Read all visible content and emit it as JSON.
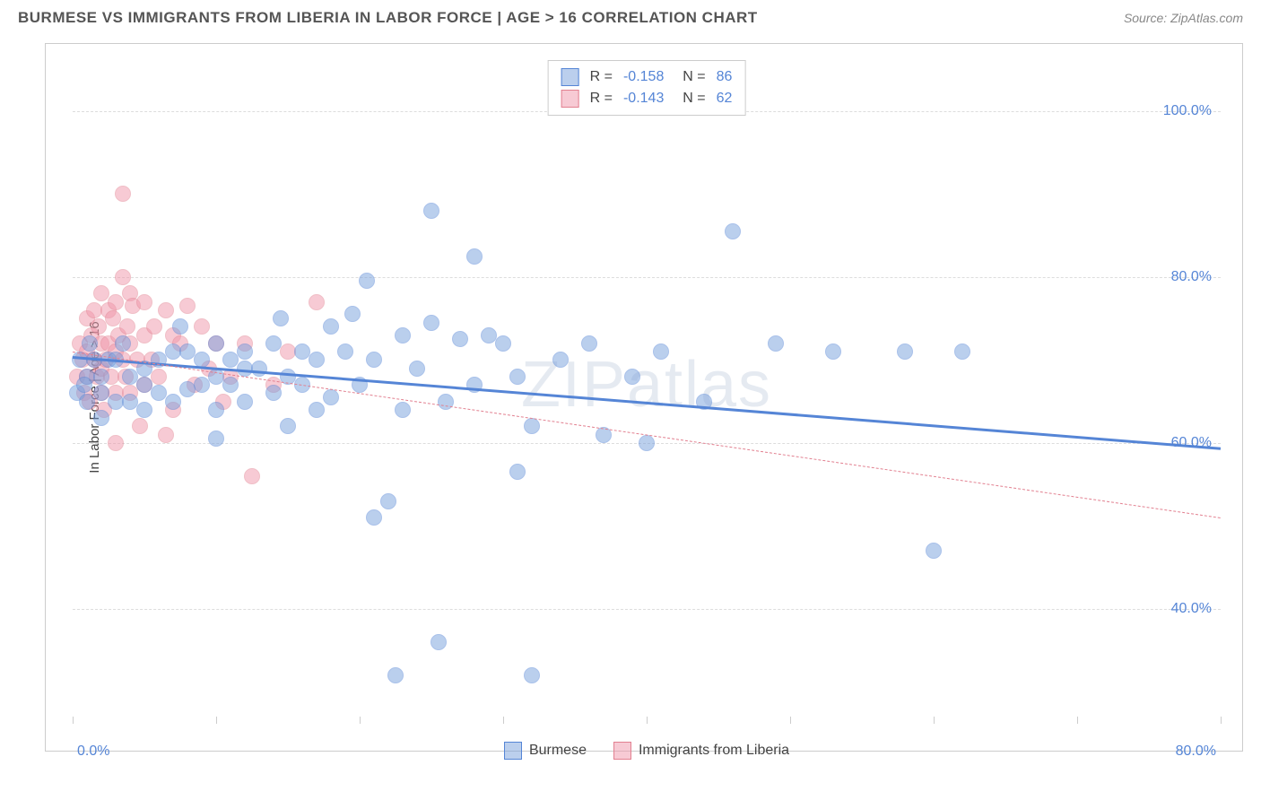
{
  "header": {
    "title": "BURMESE VS IMMIGRANTS FROM LIBERIA IN LABOR FORCE | AGE > 16 CORRELATION CHART",
    "source": "Source: ZipAtlas.com"
  },
  "watermark": "ZIPatlas",
  "chart": {
    "type": "scatter",
    "y_axis_label": "In Labor Force | Age > 16",
    "xlim": [
      0,
      80
    ],
    "ylim": [
      27,
      107
    ],
    "x_ticks": [
      0,
      10,
      20,
      30,
      40,
      50,
      60,
      70,
      80
    ],
    "x_tick_labels_shown": {
      "start": "0.0%",
      "end": "80.0%"
    },
    "y_gridlines": [
      40,
      60,
      80,
      100
    ],
    "y_tick_labels": [
      "40.0%",
      "60.0%",
      "80.0%",
      "100.0%"
    ],
    "background_color": "#ffffff",
    "grid_color": "#dddddd",
    "border_color": "#cccccc",
    "axis_label_color": "#5585d6",
    "text_color": "#444444",
    "point_radius": 9,
    "point_opacity": 0.5,
    "series": [
      {
        "name": "Burmese",
        "color": "#78a0dc",
        "stroke": "#5585d6",
        "R": "-0.158",
        "N": "86",
        "trend": {
          "x1": 0,
          "y1": 70.5,
          "x2": 80,
          "y2": 59.5,
          "width": 3,
          "dash": "solid"
        },
        "points": [
          [
            0.3,
            66
          ],
          [
            0.5,
            70
          ],
          [
            1,
            68
          ],
          [
            1,
            65
          ],
          [
            0.8,
            67
          ],
          [
            1.5,
            70
          ],
          [
            1.2,
            72
          ],
          [
            2,
            68
          ],
          [
            2,
            66
          ],
          [
            2,
            63
          ],
          [
            2.5,
            70
          ],
          [
            3,
            65
          ],
          [
            3,
            70
          ],
          [
            3.5,
            72
          ],
          [
            4,
            68
          ],
          [
            4,
            65
          ],
          [
            5,
            67
          ],
          [
            5,
            69
          ],
          [
            5,
            64
          ],
          [
            6,
            70
          ],
          [
            6,
            66
          ],
          [
            7,
            65
          ],
          [
            7,
            71
          ],
          [
            7.5,
            74
          ],
          [
            8,
            66.5
          ],
          [
            8,
            71
          ],
          [
            9,
            67
          ],
          [
            9,
            70
          ],
          [
            10,
            60.5
          ],
          [
            10,
            68
          ],
          [
            10,
            64
          ],
          [
            10,
            72
          ],
          [
            11,
            67
          ],
          [
            11,
            70
          ],
          [
            12,
            65
          ],
          [
            12,
            69
          ],
          [
            12,
            71
          ],
          [
            13,
            69
          ],
          [
            14,
            66
          ],
          [
            14,
            72
          ],
          [
            14.5,
            75
          ],
          [
            15,
            62
          ],
          [
            15,
            68
          ],
          [
            16,
            71
          ],
          [
            16,
            67
          ],
          [
            17,
            64
          ],
          [
            17,
            70
          ],
          [
            18,
            65.5
          ],
          [
            18,
            74
          ],
          [
            19,
            71
          ],
          [
            19.5,
            75.5
          ],
          [
            20,
            67
          ],
          [
            20.5,
            79.5
          ],
          [
            21,
            70
          ],
          [
            21,
            51
          ],
          [
            22,
            53
          ],
          [
            22.5,
            32
          ],
          [
            23,
            64
          ],
          [
            23,
            73
          ],
          [
            24,
            69
          ],
          [
            25,
            74.5
          ],
          [
            25,
            88
          ],
          [
            25.5,
            36
          ],
          [
            26,
            65
          ],
          [
            27,
            72.5
          ],
          [
            28,
            67
          ],
          [
            28,
            82.5
          ],
          [
            29,
            73
          ],
          [
            30,
            72
          ],
          [
            31,
            56.5
          ],
          [
            31,
            68
          ],
          [
            32,
            32
          ],
          [
            32,
            62
          ],
          [
            34,
            70
          ],
          [
            36,
            72
          ],
          [
            37,
            61
          ],
          [
            39,
            68
          ],
          [
            40,
            60
          ],
          [
            41,
            71
          ],
          [
            44,
            65
          ],
          [
            46,
            85.5
          ],
          [
            49,
            72
          ],
          [
            53,
            71
          ],
          [
            58,
            71
          ],
          [
            60,
            47
          ],
          [
            62,
            71
          ]
        ]
      },
      {
        "name": "Immigrants from Liberia",
        "color": "#f096aa",
        "stroke": "#e28090",
        "R": "-0.143",
        "N": "62",
        "trend": {
          "x1": 0,
          "y1": 71,
          "x2": 80,
          "y2": 51,
          "width": 1,
          "dash": "dashed"
        },
        "points": [
          [
            0.3,
            68
          ],
          [
            0.5,
            72
          ],
          [
            0.7,
            70
          ],
          [
            0.8,
            66
          ],
          [
            1,
            75
          ],
          [
            1,
            71
          ],
          [
            1,
            68
          ],
          [
            1.2,
            65
          ],
          [
            1.3,
            73
          ],
          [
            1.5,
            70
          ],
          [
            1.5,
            76
          ],
          [
            1.7,
            68
          ],
          [
            1.8,
            74
          ],
          [
            2,
            72
          ],
          [
            2,
            69
          ],
          [
            2,
            66
          ],
          [
            2,
            78
          ],
          [
            2.2,
            64
          ],
          [
            2.3,
            70
          ],
          [
            2.5,
            76
          ],
          [
            2.5,
            72
          ],
          [
            2.7,
            68
          ],
          [
            2.8,
            75
          ],
          [
            3,
            71
          ],
          [
            3,
            66
          ],
          [
            3,
            77
          ],
          [
            3.5,
            90
          ],
          [
            3,
            60
          ],
          [
            3.2,
            73
          ],
          [
            3.5,
            70
          ],
          [
            3.5,
            80
          ],
          [
            3.7,
            68
          ],
          [
            3.8,
            74
          ],
          [
            4,
            72
          ],
          [
            4,
            66
          ],
          [
            4,
            78
          ],
          [
            4.2,
            76.5
          ],
          [
            4.5,
            70
          ],
          [
            4.7,
            62
          ],
          [
            5,
            77
          ],
          [
            5,
            67
          ],
          [
            5,
            73
          ],
          [
            5.5,
            70
          ],
          [
            5.7,
            74
          ],
          [
            6,
            68
          ],
          [
            6.5,
            76
          ],
          [
            6.5,
            61
          ],
          [
            7,
            73
          ],
          [
            7,
            64
          ],
          [
            7.5,
            72
          ],
          [
            8,
            76.5
          ],
          [
            8.5,
            67
          ],
          [
            9,
            74
          ],
          [
            9.5,
            69
          ],
          [
            10,
            72
          ],
          [
            10.5,
            65
          ],
          [
            11,
            68
          ],
          [
            12,
            72
          ],
          [
            12.5,
            56
          ],
          [
            14,
            67
          ],
          [
            15,
            71
          ],
          [
            17,
            77
          ]
        ]
      }
    ]
  },
  "legend_bottom": {
    "items": [
      {
        "label": "Burmese",
        "swatch": "blue"
      },
      {
        "label": "Immigrants from Liberia",
        "swatch": "pink"
      }
    ]
  }
}
